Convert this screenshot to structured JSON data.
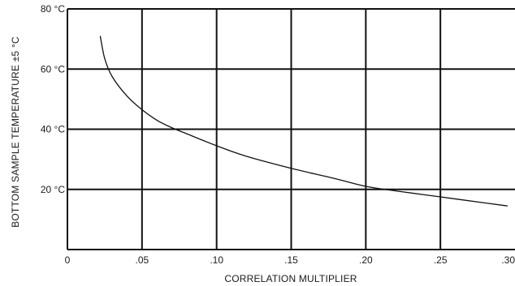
{
  "chart_data": {
    "type": "line",
    "xlabel": "CORRELATION MULTIPLIER",
    "ylabel": "BOTTOM SAMPLE TEMPERATURE ±5 °C",
    "xlim": [
      0,
      0.3
    ],
    "ylim": [
      0,
      80
    ],
    "x_ticks": [
      0,
      0.05,
      0.1,
      0.15,
      0.2,
      0.25,
      0.3
    ],
    "x_tick_labels": [
      "0",
      ".05",
      ".10",
      ".15",
      ".20",
      ".25",
      ".30"
    ],
    "y_ticks": [
      20,
      40,
      60,
      80
    ],
    "y_tick_labels": [
      "20 °C",
      "40 °C",
      "60 °C",
      "80 °C"
    ],
    "grid": true,
    "series": [
      {
        "x": [
          0.022,
          0.025,
          0.03,
          0.04,
          0.05,
          0.06,
          0.07,
          0.08,
          0.1,
          0.12,
          0.15,
          0.18,
          0.2,
          0.22,
          0.25,
          0.28,
          0.295
        ],
        "y": [
          71,
          63.5,
          57.5,
          51,
          46.5,
          43,
          40.5,
          38.5,
          34.5,
          31,
          27,
          23.5,
          21,
          19.5,
          17.5,
          15.5,
          14.5
        ]
      }
    ]
  }
}
